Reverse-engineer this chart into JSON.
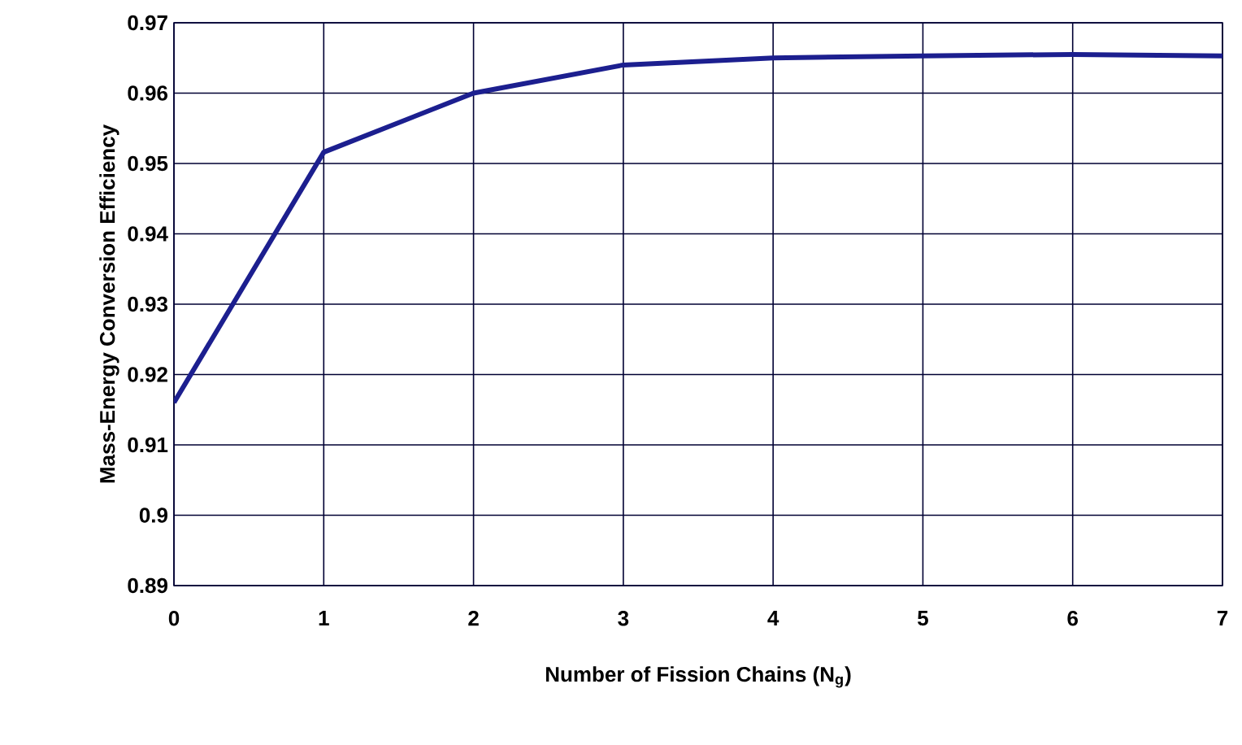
{
  "chart_data": {
    "type": "line",
    "xlabel": "Number of Fission Chains (N$_{g}$)",
    "ylabel": "Mass-Energy Conversion Efficiency",
    "x": [
      0,
      1,
      2,
      3,
      4,
      5,
      6,
      7
    ],
    "series": [
      {
        "color": "#1c1f8f",
        "values": [
          0.916,
          0.9516,
          0.96,
          0.964,
          0.965,
          0.9653,
          0.9655,
          0.9653
        ]
      }
    ],
    "xlim": [
      0,
      7
    ],
    "xticks": [
      0,
      1,
      2,
      3,
      4,
      5,
      6,
      7
    ],
    "ylim": [
      0.89,
      0.97
    ],
    "yticks": [
      0.89,
      0.9,
      0.91,
      0.92,
      0.93,
      0.94,
      0.95,
      0.96,
      0.97
    ],
    "grid": true,
    "marker": "none",
    "line_style": "solid"
  }
}
